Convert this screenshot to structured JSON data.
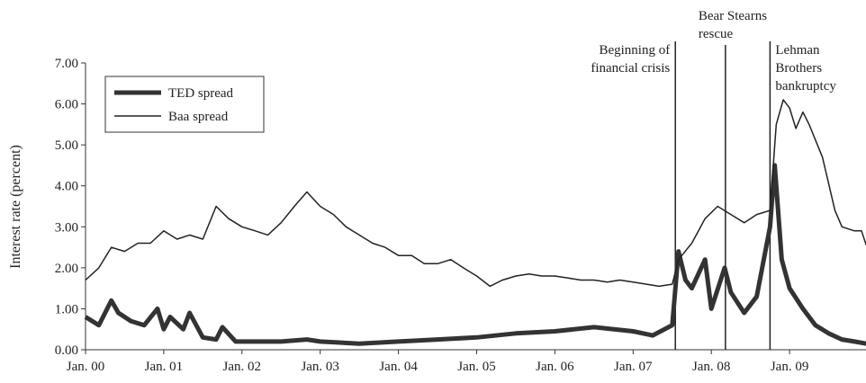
{
  "chart_data": {
    "type": "line",
    "y_label": "Interest rate (percent)",
    "xlim": [
      2000,
      2010
    ],
    "ylim": [
      0,
      7
    ],
    "xticks": [
      {
        "value": 2000,
        "label": "Jan. 00"
      },
      {
        "value": 2001,
        "label": "Jan. 01"
      },
      {
        "value": 2002,
        "label": "Jan. 02"
      },
      {
        "value": 2003,
        "label": "Jan. 03"
      },
      {
        "value": 2004,
        "label": "Jan. 04"
      },
      {
        "value": 2005,
        "label": "Jan. 05"
      },
      {
        "value": 2006,
        "label": "Jan. 06"
      },
      {
        "value": 2007,
        "label": "Jan. 07"
      },
      {
        "value": 2008,
        "label": "Jan. 08"
      },
      {
        "value": 2009,
        "label": "Jan. 09"
      }
    ],
    "yticks": [
      {
        "value": 0,
        "label": "0.00"
      },
      {
        "value": 1,
        "label": "1.00"
      },
      {
        "value": 2,
        "label": "2.00"
      },
      {
        "value": 3,
        "label": "3.00"
      },
      {
        "value": 4,
        "label": "4.00"
      },
      {
        "value": 5,
        "label": "5.00"
      },
      {
        "value": 6,
        "label": "6.00"
      },
      {
        "value": 7,
        "label": "7.00"
      }
    ],
    "legend": "upper left",
    "series": [
      {
        "name": "TED spread",
        "color": "#333333",
        "line_width": 5,
        "x": [
          2000.0,
          2000.17,
          2000.33,
          2000.42,
          2000.58,
          2000.75,
          2000.92,
          2001.0,
          2001.08,
          2001.25,
          2001.33,
          2001.5,
          2001.67,
          2001.75,
          2001.92,
          2002.17,
          2002.5,
          2002.83,
          2003.0,
          2003.5,
          2004.0,
          2004.5,
          2005.0,
          2005.5,
          2006.0,
          2006.5,
          2007.0,
          2007.25,
          2007.5,
          2007.58,
          2007.67,
          2007.75,
          2007.92,
          2008.0,
          2008.17,
          2008.25,
          2008.42,
          2008.58,
          2008.75,
          2008.81,
          2008.9,
          2009.0,
          2009.17,
          2009.33,
          2009.5,
          2009.67,
          2009.83,
          2009.98
        ],
        "values": [
          0.8,
          0.6,
          1.2,
          0.9,
          0.7,
          0.6,
          1.0,
          0.5,
          0.8,
          0.5,
          0.9,
          0.3,
          0.25,
          0.55,
          0.2,
          0.2,
          0.2,
          0.25,
          0.2,
          0.15,
          0.2,
          0.25,
          0.3,
          0.4,
          0.45,
          0.55,
          0.45,
          0.35,
          0.6,
          2.4,
          1.7,
          1.5,
          2.2,
          1.0,
          2.0,
          1.4,
          0.9,
          1.3,
          3.0,
          4.5,
          2.2,
          1.5,
          1.0,
          0.6,
          0.4,
          0.25,
          0.2,
          0.15
        ]
      },
      {
        "name": "Baa spread",
        "color": "#222222",
        "line_width": 1.5,
        "x": [
          2000.0,
          2000.17,
          2000.33,
          2000.5,
          2000.67,
          2000.83,
          2001.0,
          2001.17,
          2001.33,
          2001.5,
          2001.67,
          2001.83,
          2002.0,
          2002.17,
          2002.33,
          2002.5,
          2002.67,
          2002.83,
          2003.0,
          2003.17,
          2003.33,
          2003.5,
          2003.67,
          2003.83,
          2004.0,
          2004.17,
          2004.33,
          2004.5,
          2004.67,
          2004.83,
          2005.0,
          2005.17,
          2005.33,
          2005.5,
          2005.67,
          2005.83,
          2006.0,
          2006.17,
          2006.33,
          2006.5,
          2006.67,
          2006.83,
          2007.0,
          2007.17,
          2007.33,
          2007.5,
          2007.58,
          2007.75,
          2007.92,
          2008.08,
          2008.25,
          2008.42,
          2008.58,
          2008.75,
          2008.83,
          2008.92,
          2009.0,
          2009.08,
          2009.17,
          2009.25,
          2009.42,
          2009.58,
          2009.67,
          2009.83,
          2009.92,
          2009.98
        ],
        "values": [
          1.7,
          2.0,
          2.5,
          2.4,
          2.6,
          2.6,
          2.9,
          2.7,
          2.8,
          2.7,
          3.5,
          3.2,
          3.0,
          2.9,
          2.8,
          3.1,
          3.5,
          3.85,
          3.5,
          3.3,
          3.0,
          2.8,
          2.6,
          2.5,
          2.3,
          2.3,
          2.1,
          2.1,
          2.2,
          2.0,
          1.8,
          1.55,
          1.7,
          1.8,
          1.85,
          1.8,
          1.8,
          1.75,
          1.7,
          1.7,
          1.65,
          1.7,
          1.65,
          1.6,
          1.55,
          1.6,
          2.2,
          2.6,
          3.2,
          3.5,
          3.3,
          3.1,
          3.3,
          3.4,
          5.5,
          6.1,
          5.9,
          5.4,
          5.8,
          5.5,
          4.7,
          3.4,
          3.0,
          2.9,
          2.9,
          2.55
        ]
      }
    ],
    "annotations": [
      {
        "x": 2007.54,
        "lines": [
          "Beginning of",
          "financial crisis"
        ]
      },
      {
        "x": 2008.18,
        "lines": [
          "Bear Stearns",
          "rescue"
        ]
      },
      {
        "x": 2008.75,
        "lines": [
          "Lehman",
          "Brothers",
          "bankruptcy"
        ]
      }
    ]
  }
}
